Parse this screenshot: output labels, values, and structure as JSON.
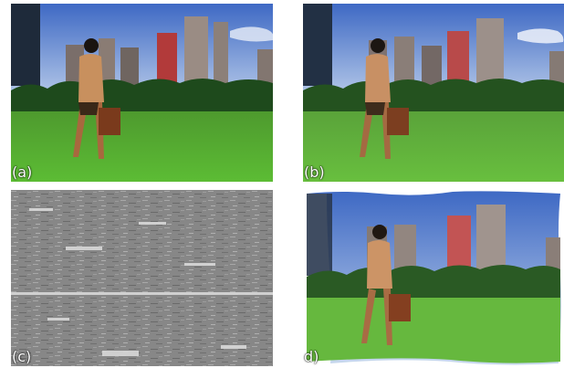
{
  "panels": [
    {
      "id": "a",
      "label": "(a)"
    },
    {
      "id": "b",
      "label": "(b)"
    },
    {
      "id": "c",
      "label": "(c)"
    },
    {
      "id": "d",
      "label": "d)"
    }
  ],
  "colors": {
    "sky_top": "#4a73c8",
    "sky_bottom": "#c8d8ee",
    "grass": "#54b032",
    "trees": "#1f4a1e",
    "tower_red": "#b23a3a",
    "skin": "#a8683e",
    "shirt": "#c89060",
    "bag": "#7a3a1c",
    "noise_bg": "#8a8a8a"
  },
  "icons": [
    "person-icon",
    "bag-icon"
  ]
}
